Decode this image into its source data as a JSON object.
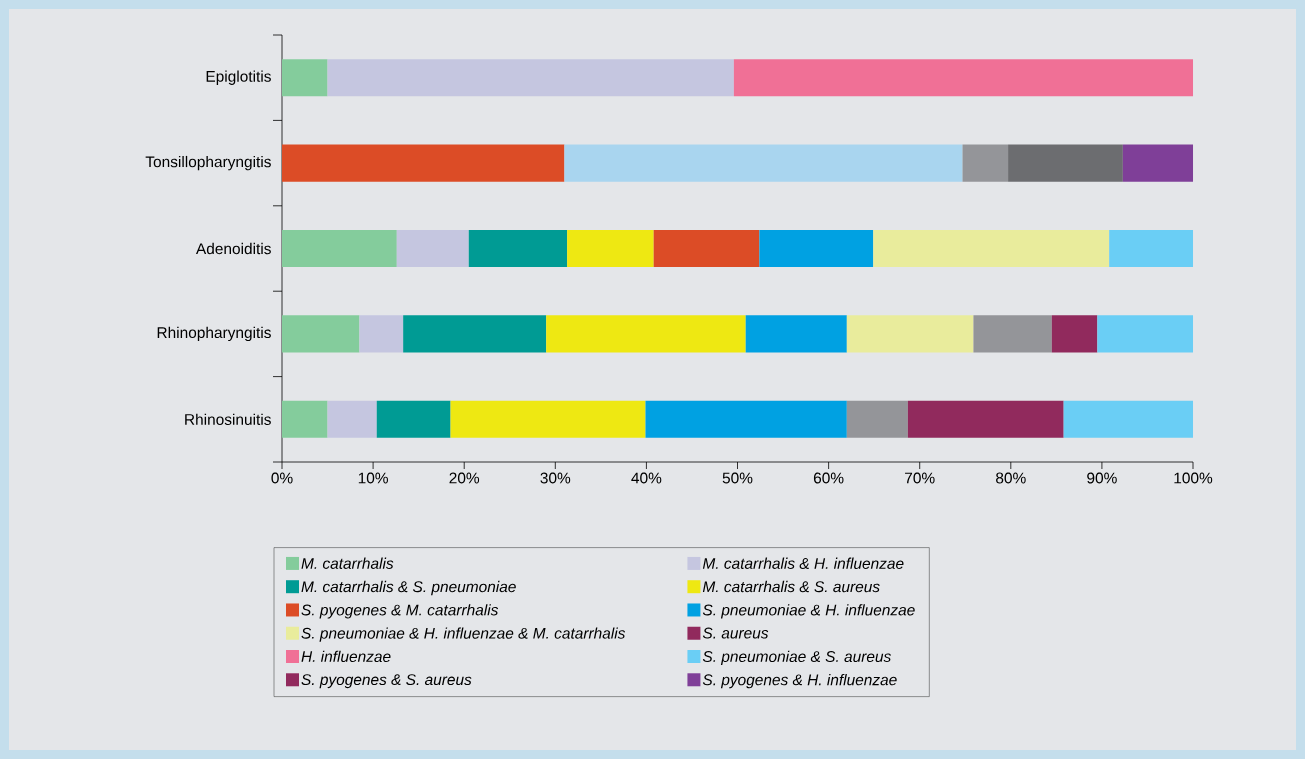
{
  "chart_data": {
    "type": "bar",
    "orientation": "horizontal",
    "stacked": true,
    "categories": [
      "Epiglotitis",
      "Tonsillopharyngitis",
      "Adenoiditis",
      "Rhinopharyngitis",
      "Rhinosinuitis"
    ],
    "series": [
      {
        "name": "*M. catarrhalis*",
        "color": "#84cc9c",
        "values": [
          5,
          null,
          12.6,
          8.5,
          5
        ]
      },
      {
        "name": "*M. catarrhalis* & *H. influenzae*",
        "color": "#c5c6e0",
        "values": [
          44.6,
          null,
          7.9,
          4.8,
          5.4
        ]
      },
      {
        "name": "*M. catarrhalis* & *S. pneumoniae*",
        "color": "#009b94",
        "values": [
          null,
          null,
          10.8,
          15.7,
          8.1
        ]
      },
      {
        "name": "*M. catarrhalis* & *S. aureus*",
        "color": "#eee812",
        "values": [
          null,
          null,
          9.5,
          21.9,
          21.4
        ]
      },
      {
        "name": "*S. pyogenes* & *M. catarrhalis*",
        "color": "#dc4c26",
        "values": [
          null,
          31,
          11.6,
          null,
          null
        ]
      },
      {
        "color": "#a9d5ef",
        "values": [
          null,
          43.7,
          null,
          null,
          null
        ]
      },
      {
        "name": "*S. pneumoniae* & *H. influenzae*",
        "color": "#00a1e2",
        "values": [
          null,
          null,
          12.5,
          11.1,
          22.1
        ]
      },
      {
        "name": "*S. pneumoniae* & *H. influenzae* & *M. catarrhalis*",
        "color": "#e9ec9c",
        "values": [
          null,
          null,
          25.9,
          13.9,
          null
        ]
      },
      {
        "color": "#949599",
        "values": [
          null,
          5,
          null,
          8.6,
          6.7
        ]
      },
      {
        "color": "#6c6d70",
        "values": [
          null,
          12.6,
          null,
          null,
          null
        ]
      },
      {
        "name": "*S. aureus*",
        "color": "#912a5d",
        "values": [
          null,
          null,
          null,
          5.0,
          17.1
        ]
      },
      {
        "name": "*H. influenzae*",
        "color": "#f07096",
        "values": [
          50.4,
          null,
          null,
          null,
          null
        ]
      },
      {
        "name": "*S. pneumoniae* & *S. aureus*",
        "color": "#6acef5",
        "values": [
          null,
          null,
          9.2,
          10.5,
          14.2
        ]
      },
      {
        "name": "*S. pyogenes* & *S. aureus*",
        "color": "#912a5d",
        "values": [
          null,
          null,
          null,
          null,
          null
        ]
      },
      {
        "name": "*S. pyogenes* & *H. influenzae*",
        "color": "#7f3f98",
        "values": [
          null,
          7.7,
          null,
          null,
          null
        ]
      }
    ],
    "xlim": [
      0,
      100
    ],
    "xticks": [
      {
        "value": 0,
        "label": "0%"
      },
      {
        "value": 10,
        "label": "10%"
      },
      {
        "value": 20,
        "label": "20%"
      },
      {
        "value": 30,
        "label": "30%"
      },
      {
        "value": 40,
        "label": "40%"
      },
      {
        "value": 50,
        "label": "50%"
      },
      {
        "value": 60,
        "label": "60%"
      },
      {
        "value": 70,
        "label": "70%"
      },
      {
        "value": 80,
        "label": "80%"
      },
      {
        "value": 90,
        "label": "90%"
      },
      {
        "value": 100,
        "label": "100%"
      }
    ],
    "legend": "bottom"
  }
}
